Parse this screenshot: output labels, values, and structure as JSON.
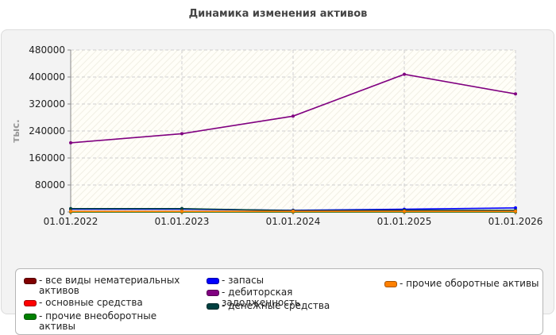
{
  "chart_data": {
    "type": "line",
    "title": "Динамика изменения активов",
    "ylabel": "тыс.",
    "xlabel": "",
    "categories": [
      "01.01.2022",
      "01.01.2023",
      "01.01.2024",
      "01.01.2025",
      "01.01.2026"
    ],
    "ylim": [
      0,
      480000
    ],
    "yticks": [
      0,
      80000,
      160000,
      240000,
      320000,
      400000,
      480000
    ],
    "grid": true,
    "legend_position": "bottom",
    "series": [
      {
        "name": "- все виды нематериальных активов",
        "color": "#800000",
        "values": [
          0,
          0,
          0,
          0,
          0
        ]
      },
      {
        "name": "- основные средства",
        "color": "#ff0000",
        "values": [
          1000,
          1000,
          1000,
          1000,
          1000
        ]
      },
      {
        "name": "- прочие внеоборотные активы",
        "color": "#008000",
        "values": [
          500,
          500,
          500,
          500,
          500
        ]
      },
      {
        "name": "- запасы",
        "color": "#0000ff",
        "values": [
          8000,
          8000,
          5000,
          8000,
          12000
        ]
      },
      {
        "name": "- дебиторская задолженность",
        "color": "#800080",
        "values": [
          205000,
          232000,
          284000,
          408000,
          350000
        ]
      },
      {
        "name": "- денежные средства",
        "color": "#004040",
        "values": [
          10000,
          10000,
          4000,
          5000,
          5000
        ]
      },
      {
        "name": "- прочие оборотные активы",
        "color": "#ff8000",
        "values": [
          2000,
          2000,
          2000,
          2000,
          2000
        ]
      }
    ]
  }
}
